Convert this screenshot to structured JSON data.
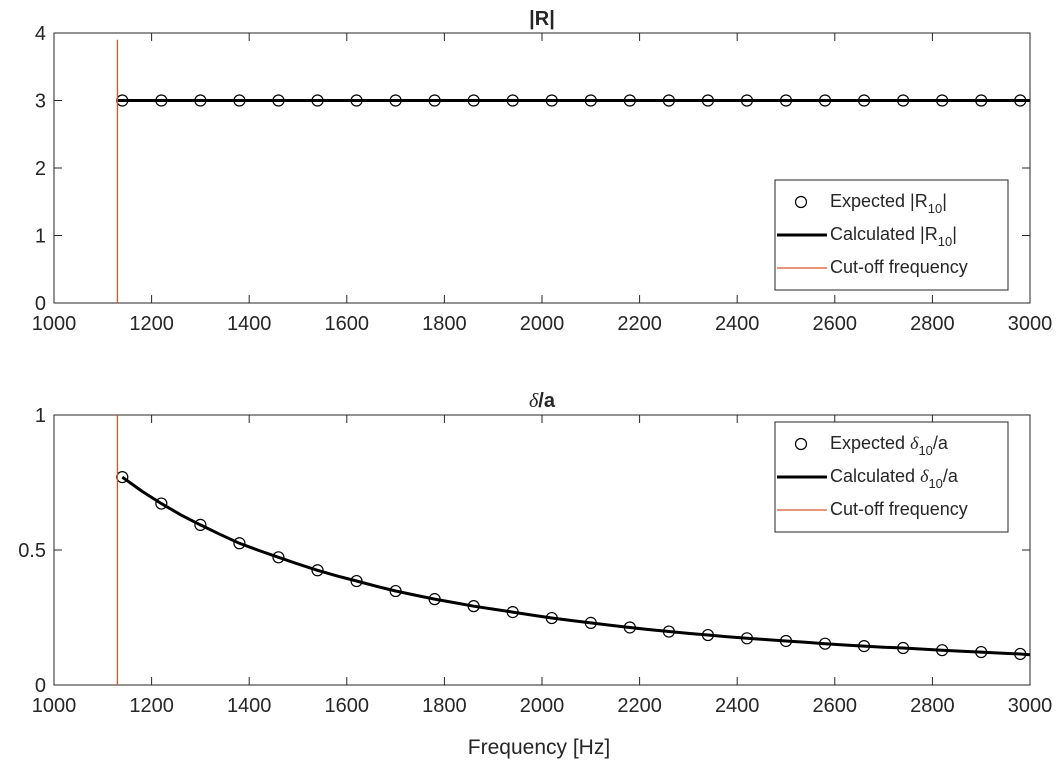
{
  "figure": {
    "xlabel": "Frequency [Hz]"
  },
  "chart_data": [
    {
      "type": "line",
      "title": "|R|",
      "xlabel": "",
      "ylabel": "",
      "xlim": [
        1000,
        3000
      ],
      "ylim": [
        0,
        4
      ],
      "x_ticks": [
        1000,
        1200,
        1400,
        1600,
        1800,
        2000,
        2200,
        2400,
        2600,
        2800,
        3000
      ],
      "y_ticks": [
        0,
        1,
        2,
        3,
        4
      ],
      "grid": false,
      "legend_position": "lower-right",
      "cutoff_frequency": 1130,
      "series": [
        {
          "name": "Expected |R10|",
          "legend_main": "Expected |R",
          "legend_sub": "10",
          "legend_tail": "|",
          "style": "markers",
          "marker": "circle",
          "color": "#000000",
          "x": [
            1140,
            1220,
            1300,
            1380,
            1460,
            1540,
            1620,
            1700,
            1780,
            1860,
            1940,
            2020,
            2100,
            2180,
            2260,
            2340,
            2420,
            2500,
            2580,
            2660,
            2740,
            2820,
            2900,
            2980
          ],
          "y": [
            3,
            3,
            3,
            3,
            3,
            3,
            3,
            3,
            3,
            3,
            3,
            3,
            3,
            3,
            3,
            3,
            3,
            3,
            3,
            3,
            3,
            3,
            3,
            3
          ]
        },
        {
          "name": "Calculated |R10|",
          "legend_main": "Calculated |R",
          "legend_sub": "10",
          "legend_tail": "|",
          "style": "line",
          "color": "#000000",
          "x": [
            1130,
            3000
          ],
          "y": [
            3,
            3
          ]
        },
        {
          "name": "Cut-off frequency",
          "legend_main": "Cut-off frequency",
          "legend_sub": "",
          "legend_tail": "",
          "style": "vline",
          "color": "#d9542b",
          "x": [
            1130,
            1130
          ],
          "y": [
            0,
            3.9
          ]
        }
      ]
    },
    {
      "type": "line",
      "title": "δ/a",
      "title_main": "δ",
      "title_tail": "/a",
      "xlabel": "Frequency [Hz]",
      "ylabel": "",
      "xlim": [
        1000,
        3000
      ],
      "ylim": [
        0,
        1
      ],
      "x_ticks": [
        1000,
        1200,
        1400,
        1600,
        1800,
        2000,
        2200,
        2400,
        2600,
        2800,
        3000
      ],
      "y_ticks": [
        0,
        0.5,
        1
      ],
      "grid": false,
      "legend_position": "top-right",
      "cutoff_frequency": 1130,
      "series": [
        {
          "name": "Expected δ10/a",
          "legend_main": "Expected ",
          "legend_sym": "δ",
          "legend_sub": "10",
          "legend_tail": "/a",
          "style": "markers",
          "marker": "circle",
          "color": "#000000",
          "x": [
            1140,
            1220,
            1300,
            1380,
            1460,
            1540,
            1620,
            1700,
            1780,
            1860,
            1940,
            2020,
            2100,
            2180,
            2260,
            2340,
            2420,
            2500,
            2580,
            2660,
            2740,
            2820,
            2900,
            2980
          ],
          "y": [
            0.77,
            0.672,
            0.593,
            0.525,
            0.473,
            0.425,
            0.385,
            0.348,
            0.318,
            0.292,
            0.27,
            0.248,
            0.23,
            0.213,
            0.198,
            0.185,
            0.173,
            0.163,
            0.153,
            0.144,
            0.137,
            0.129,
            0.122,
            0.115
          ]
        },
        {
          "name": "Calculated δ10/a",
          "legend_main": "Calculated ",
          "legend_sym": "δ",
          "legend_sub": "10",
          "legend_tail": "/a",
          "style": "line",
          "color": "#000000",
          "x": [
            1140,
            1180,
            1220,
            1260,
            1300,
            1340,
            1380,
            1420,
            1460,
            1500,
            1540,
            1580,
            1620,
            1660,
            1700,
            1740,
            1780,
            1820,
            1860,
            1900,
            1940,
            1980,
            2020,
            2060,
            2100,
            2140,
            2180,
            2220,
            2260,
            2300,
            2340,
            2380,
            2420,
            2460,
            2500,
            2540,
            2580,
            2620,
            2660,
            2700,
            2740,
            2780,
            2820,
            2860,
            2900,
            2940,
            2980,
            3000
          ],
          "y": [
            0.77,
            0.718,
            0.672,
            0.63,
            0.593,
            0.558,
            0.525,
            0.498,
            0.473,
            0.448,
            0.425,
            0.404,
            0.385,
            0.366,
            0.348,
            0.333,
            0.318,
            0.305,
            0.292,
            0.281,
            0.27,
            0.259,
            0.248,
            0.239,
            0.23,
            0.221,
            0.213,
            0.205,
            0.198,
            0.191,
            0.185,
            0.179,
            0.173,
            0.168,
            0.163,
            0.158,
            0.153,
            0.148,
            0.144,
            0.14,
            0.137,
            0.133,
            0.129,
            0.125,
            0.122,
            0.118,
            0.115,
            0.112
          ]
        },
        {
          "name": "Cut-off frequency",
          "legend_main": "Cut-off frequency",
          "legend_sym": "",
          "legend_sub": "",
          "legend_tail": "",
          "style": "vline",
          "color": "#d9542b",
          "x": [
            1130,
            1130
          ],
          "y": [
            0,
            1
          ]
        }
      ]
    }
  ]
}
